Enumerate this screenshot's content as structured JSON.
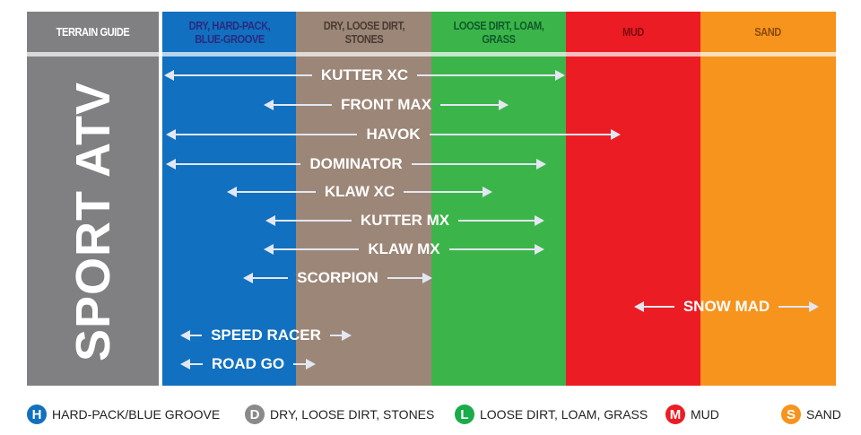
{
  "header": {
    "title": "TERRAIN GUIDE",
    "columns": [
      {
        "label": "DRY, HARD-PACK, BLUE-GROOVE",
        "color": "#1170bf",
        "text_color": "#2a2a80"
      },
      {
        "label": "DRY, LOOSE DIRT, STONES",
        "color": "#9c8677",
        "text_color": "#4a3b33"
      },
      {
        "label": "LOOSE DIRT, LOAM, GRASS",
        "color": "#3bb54a",
        "text_color": "#0f5a2a"
      },
      {
        "label": "MUD",
        "color": "#ec1c24",
        "text_color": "#7a0b10"
      },
      {
        "label": "SAND",
        "color": "#f7941d",
        "text_color": "#8a4a08"
      }
    ]
  },
  "category": "SPORT ATV",
  "tires": [
    "KUTTER XC",
    "FRONT MAX",
    "HAVOK",
    "DOMINATOR",
    "KLAW XC",
    "KUTTER MX",
    "KLAW MX",
    "SCORPION",
    "SNOW MAD",
    "SPEED RACER",
    "ROAD GO"
  ],
  "legend": [
    {
      "letter": "H",
      "label": "HARD-PACK/BLUE GROOVE",
      "color": "#1170bf"
    },
    {
      "letter": "D",
      "label": "DRY, LOOSE DIRT, STONES",
      "color": "#8a8a8a"
    },
    {
      "letter": "L",
      "label": "LOOSE DIRT, LOAM, GRASS",
      "color": "#1aab4b"
    },
    {
      "letter": "M",
      "label": "MUD",
      "color": "#ec1c24"
    },
    {
      "letter": "S",
      "label": "SAND",
      "color": "#f7941d"
    }
  ]
}
